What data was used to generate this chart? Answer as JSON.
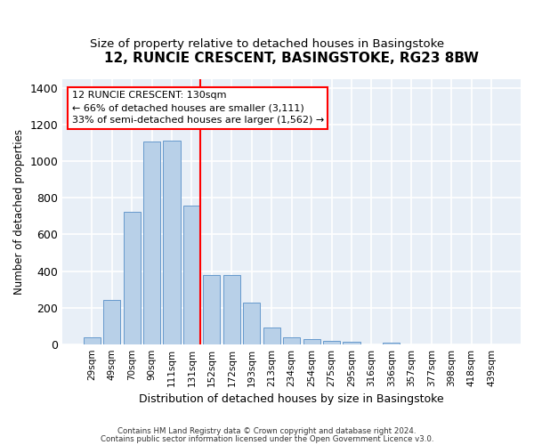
{
  "title": "12, RUNCIE CRESCENT, BASINGSTOKE, RG23 8BW",
  "subtitle": "Size of property relative to detached houses in Basingstoke",
  "xlabel": "Distribution of detached houses by size in Basingstoke",
  "ylabel": "Number of detached properties",
  "footnote1": "Contains HM Land Registry data © Crown copyright and database right 2024.",
  "footnote2": "Contains public sector information licensed under the Open Government Licence v3.0.",
  "categories": [
    "29sqm",
    "49sqm",
    "70sqm",
    "90sqm",
    "111sqm",
    "131sqm",
    "152sqm",
    "172sqm",
    "193sqm",
    "213sqm",
    "234sqm",
    "254sqm",
    "275sqm",
    "295sqm",
    "316sqm",
    "336sqm",
    "357sqm",
    "377sqm",
    "398sqm",
    "418sqm",
    "439sqm"
  ],
  "values": [
    35,
    240,
    725,
    1110,
    1115,
    760,
    380,
    380,
    225,
    90,
    38,
    28,
    20,
    15,
    0,
    10,
    0,
    0,
    0,
    0,
    0
  ],
  "bar_color": "#b8d0e8",
  "bar_edge_color": "#6699cc",
  "vline_color": "red",
  "vline_x_index": 5,
  "annotation_text": "12 RUNCIE CRESCENT: 130sqm\n← 66% of detached houses are smaller (3,111)\n33% of semi-detached houses are larger (1,562) →",
  "annotation_box_color": "white",
  "annotation_box_edge_color": "red",
  "ylim": [
    0,
    1450
  ],
  "yticks": [
    0,
    200,
    400,
    600,
    800,
    1000,
    1200,
    1400
  ],
  "title_fontsize": 11,
  "subtitle_fontsize": 9.5,
  "axes_background": "#e8eff7",
  "background_color": "white",
  "grid_color": "white"
}
